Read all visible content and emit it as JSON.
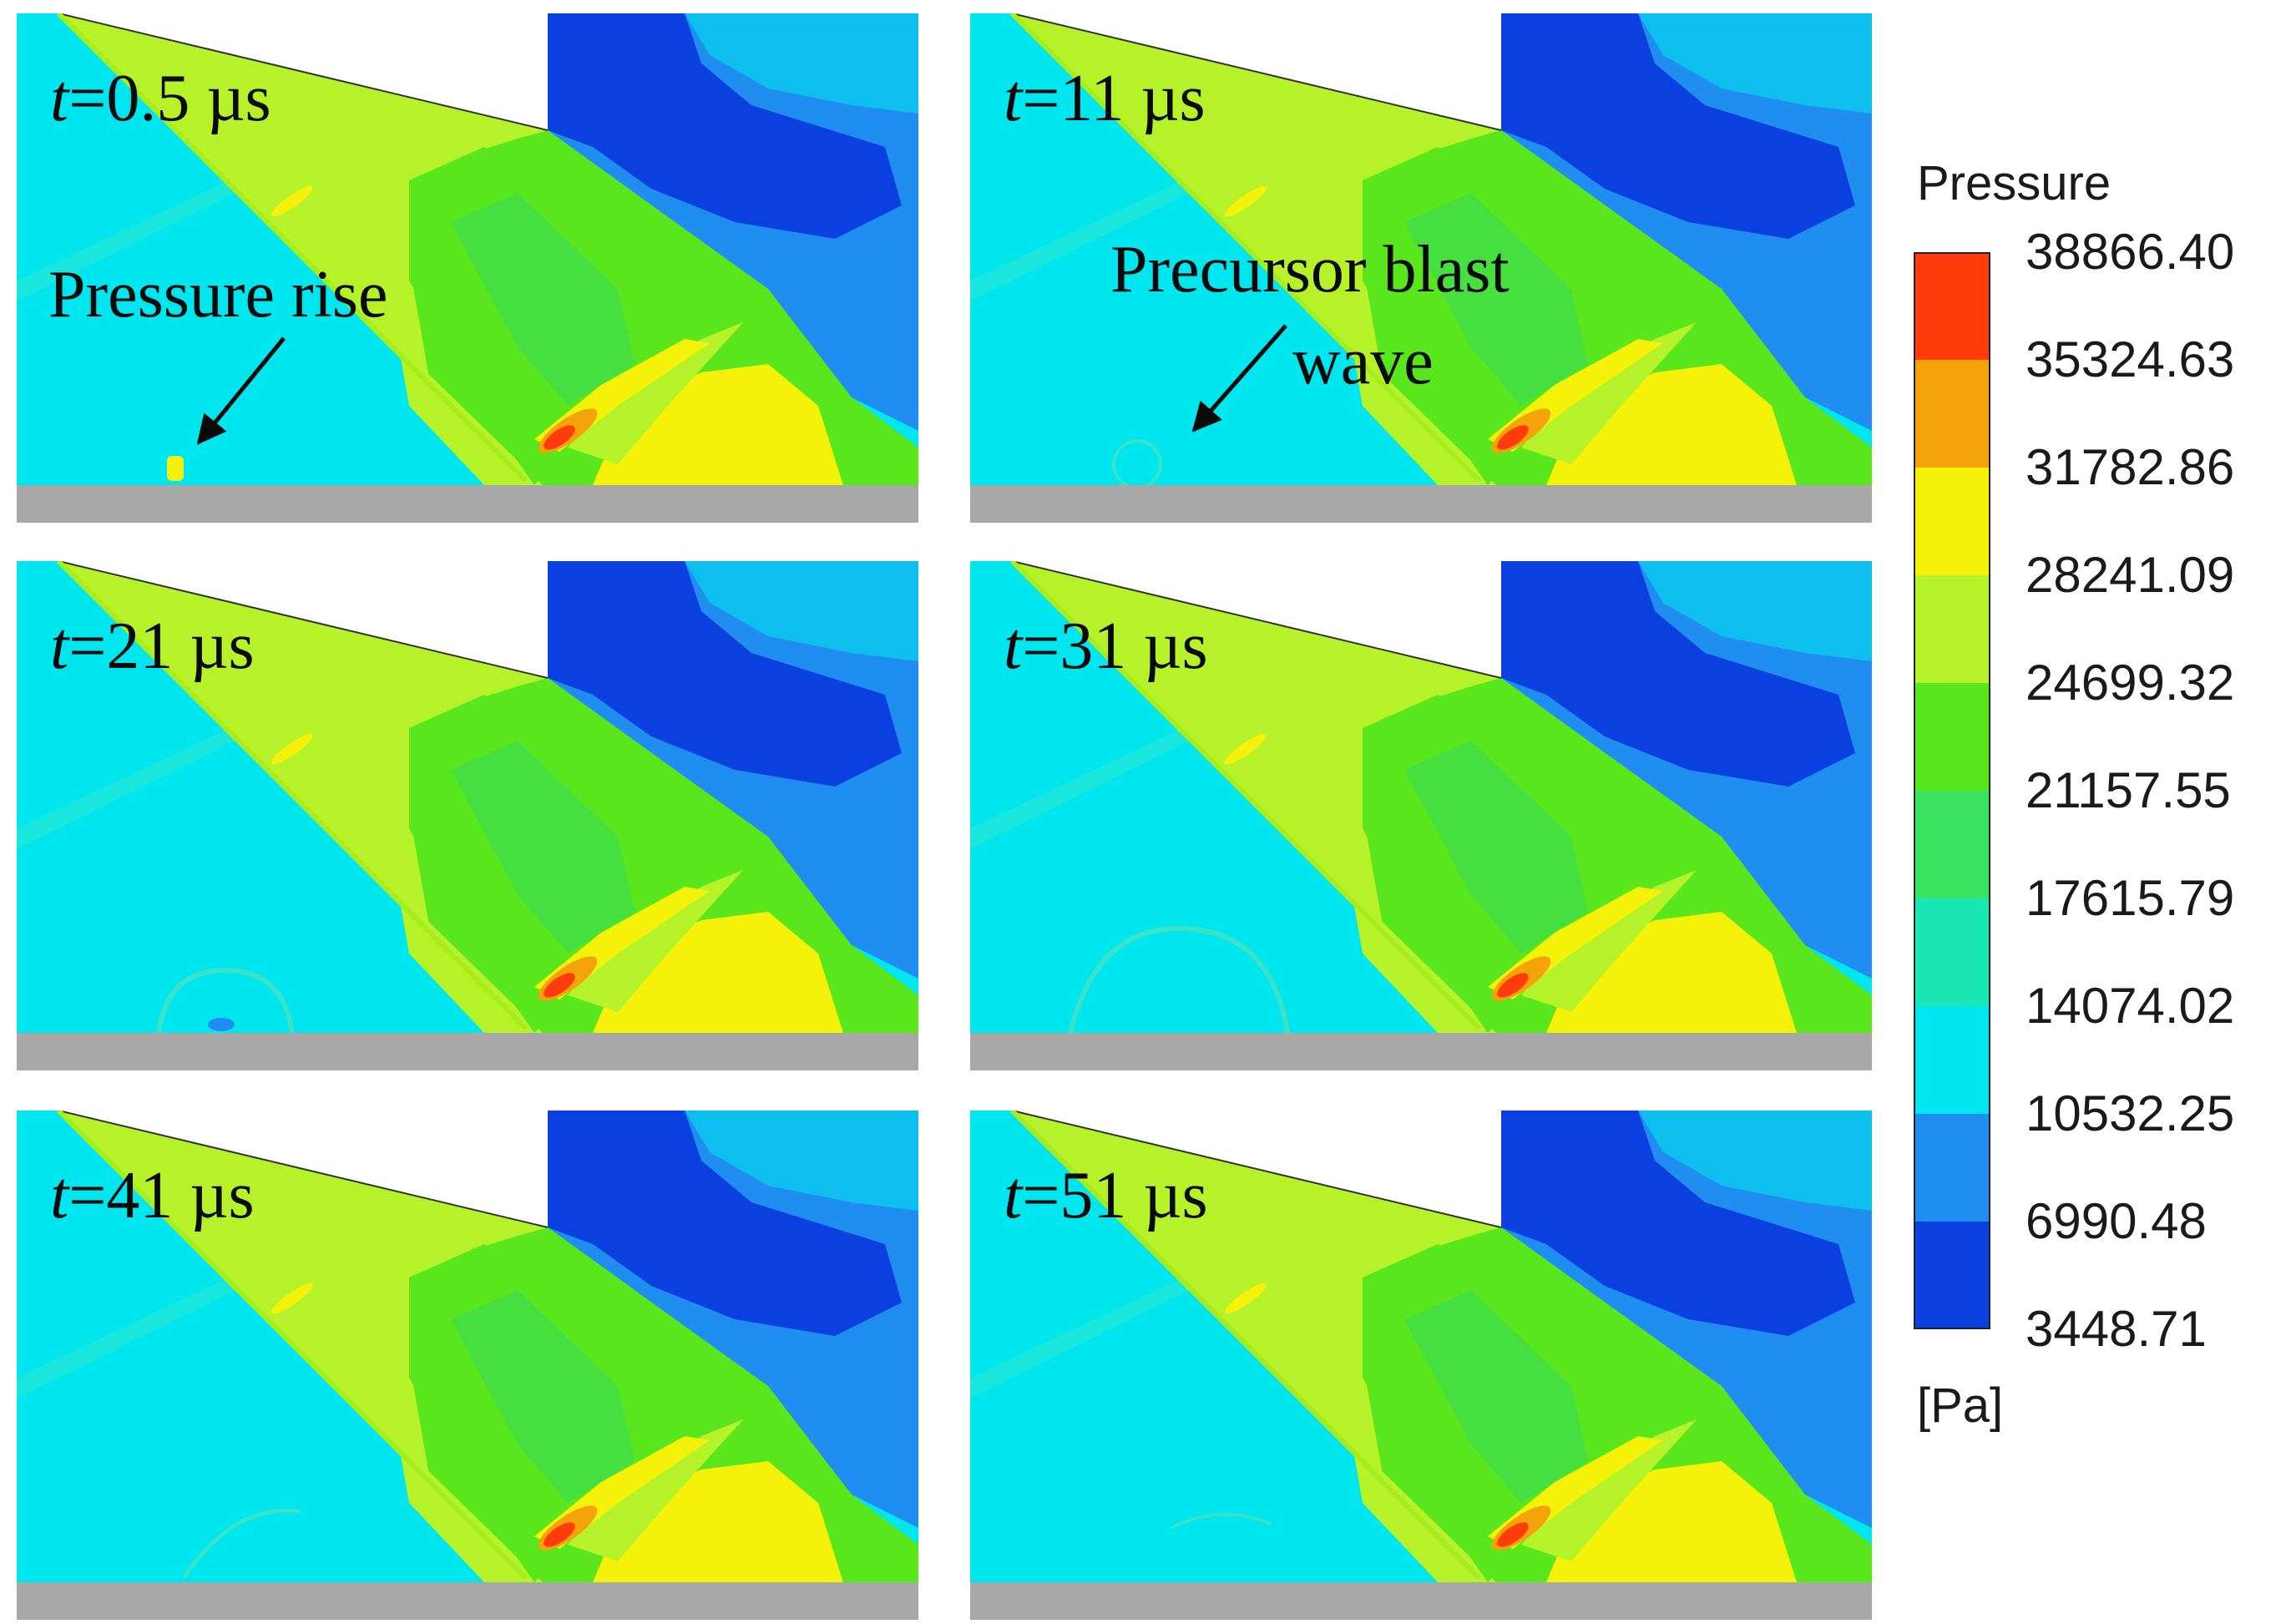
{
  "colors": {
    "deep_blue": "#0a3fe0",
    "blue": "#1f8ef0",
    "cyan": "#00e6ee",
    "aqua": "#19e6b4",
    "green_light": "#39e35f",
    "green": "#59e61c",
    "yellow_green": "#b6f22a",
    "yellow": "#f5f20a",
    "orange": "#f5a30a",
    "red": "#ff3c0a",
    "ground": "#a8a8a8"
  },
  "panels": [
    {
      "label_var": "t",
      "label_rest": "=0.5 µs"
    },
    {
      "label_var": "t",
      "label_rest": "=11 µs"
    },
    {
      "label_var": "t",
      "label_rest": "=21 µs"
    },
    {
      "label_var": "t",
      "label_rest": "=31 µs"
    },
    {
      "label_var": "t",
      "label_rest": "=41 µs"
    },
    {
      "label_var": "t",
      "label_rest": "=51 µs"
    }
  ],
  "annotations": {
    "pressure_rise": "Pressure rise",
    "precursor_line1": "Precursor  blast",
    "precursor_line2": "wave"
  },
  "legend": {
    "title": "Pressure",
    "unit": "[Pa]",
    "ticks": [
      "38866.40",
      "35324.63",
      "31782.86",
      "28241.09",
      "24699.32",
      "21157.55",
      "17615.79",
      "14074.02",
      "10532.25",
      "6990.48",
      "3448.71"
    ],
    "band_colors": [
      "#ff3c0a",
      "#f5a30a",
      "#f5f20a",
      "#b6f22a",
      "#59e61c",
      "#39e35f",
      "#19e6b4",
      "#00e6ee",
      "#1f8ef0",
      "#0a3fe0"
    ]
  }
}
